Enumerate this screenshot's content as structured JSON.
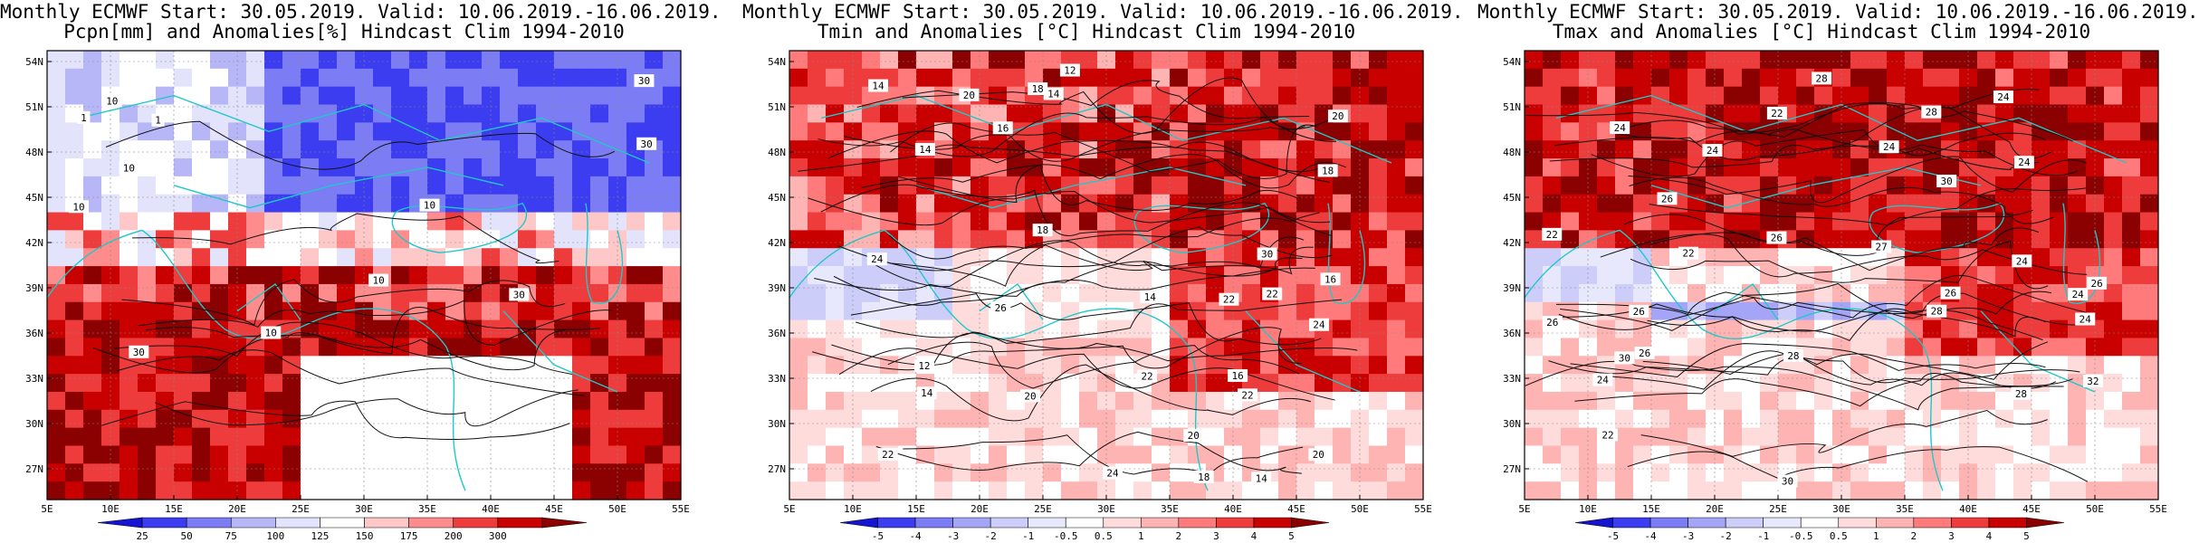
{
  "panels": [
    {
      "title1": "Monthly ECMWF Start: 30.05.2019. Valid: 10.06.2019.-16.06.2019.",
      "title2": "Pcpn[mm] and Anomalies[%] Hindcast Clim 1994-2010",
      "colorbar": [
        "25",
        "50",
        "75",
        "100",
        "125",
        "150",
        "175",
        "200",
        "300"
      ],
      "colors": [
        "#1414d2",
        "#3c3cf0",
        "#7c7cf5",
        "#b7b7f8",
        "#e3e3fb",
        "#ffffff",
        "#ffc8c8",
        "#ff8c8c",
        "#ee3b3b",
        "#c80000",
        "#8b0000"
      ],
      "contour_labels": [
        "10",
        "10",
        "30",
        "10",
        "30",
        "10",
        "30",
        "1",
        "10",
        "30",
        "1",
        "10"
      ],
      "style": "pcpn"
    },
    {
      "title1": "Monthly ECMWF Start: 30.05.2019. Valid: 10.06.2019.-16.06.2019.",
      "title2": "Tmin and Anomalies [°C] Hindcast Clim 1994-2010",
      "colorbar": [
        "-5",
        "-4",
        "-3",
        "-2",
        "-1",
        "-0.5",
        "0.5",
        "1",
        "2",
        "3",
        "4",
        "5"
      ],
      "colors": [
        "#1414d2",
        "#3c3cf0",
        "#7c7cf5",
        "#a5a5f8",
        "#cdcdfa",
        "#e8e8fc",
        "#ffffff",
        "#ffdcdc",
        "#ffb4b4",
        "#ff7a7a",
        "#ee3b3b",
        "#c80000",
        "#8b0000"
      ],
      "contour_labels": [
        "14",
        "16",
        "16",
        "14",
        "18",
        "12",
        "20",
        "22",
        "20",
        "18",
        "14",
        "16",
        "14",
        "12",
        "18",
        "20",
        "22",
        "14",
        "24",
        "22",
        "20",
        "18",
        "22",
        "24",
        "26",
        "30",
        "20",
        "22",
        "24",
        "14"
      ],
      "style": "tmin"
    },
    {
      "title1": "Monthly ECMWF Start: 30.05.2019. Valid: 10.06.2019.-16.06.2019.",
      "title2": "Tmax and Anomalies [°C] Hindcast Clim 1994-2010",
      "colorbar": [
        "-5",
        "-4",
        "-3",
        "-2",
        "-1",
        "-0.5",
        "0.5",
        "1",
        "2",
        "3",
        "4",
        "5"
      ],
      "colors": [
        "#1414d2",
        "#3c3cf0",
        "#7c7cf5",
        "#a5a5f8",
        "#cdcdfa",
        "#e8e8fc",
        "#ffffff",
        "#ffdcdc",
        "#ffb4b4",
        "#ff7a7a",
        "#ee3b3b",
        "#c80000",
        "#8b0000"
      ],
      "contour_labels": [
        "24",
        "26",
        "28",
        "28",
        "27",
        "24",
        "26",
        "30",
        "26",
        "24",
        "22",
        "26",
        "28",
        "22",
        "24",
        "32",
        "26",
        "24",
        "28",
        "22",
        "24",
        "26",
        "30",
        "24",
        "22",
        "24",
        "26",
        "28",
        "30",
        "24"
      ],
      "style": "tmax"
    }
  ],
  "lat_labels": [
    "54N",
    "51N",
    "48N",
    "45N",
    "42N",
    "39N",
    "36N",
    "33N",
    "30N",
    "27N"
  ],
  "lon_labels": [
    "5E",
    "10E",
    "15E",
    "20E",
    "25E",
    "30E",
    "35E",
    "40E",
    "45E",
    "50E",
    "55E"
  ],
  "coast_color": "#20c8c8"
}
